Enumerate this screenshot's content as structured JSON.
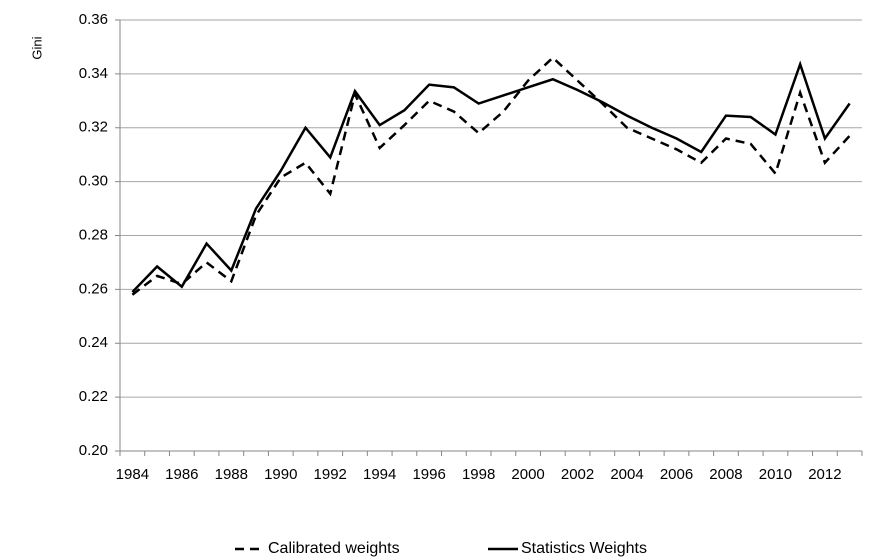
{
  "chart_data": {
    "type": "line",
    "y_label": "Gini",
    "categories": [
      "1984",
      null,
      "1986",
      null,
      "1988",
      null,
      "1990",
      null,
      "1992",
      null,
      "1994",
      null,
      "1996",
      null,
      "1998",
      null,
      "2000",
      null,
      "2002",
      null,
      "2004",
      null,
      "2006",
      null,
      "2008",
      null,
      "2010",
      null,
      "2012",
      null
    ],
    "series": [
      {
        "name": "Calibrated weights",
        "color": "#000000",
        "style": "dashed",
        "values": [
          0.258,
          0.265,
          0.262,
          0.27,
          0.263,
          0.2875,
          0.3015,
          0.307,
          0.2955,
          0.3325,
          0.3125,
          0.321,
          0.33,
          0.326,
          0.318,
          0.326,
          0.3375,
          0.346,
          0.3375,
          0.329,
          0.32,
          0.316,
          0.312,
          0.307,
          0.316,
          0.314,
          0.303,
          0.333,
          0.307,
          0.317
        ]
      },
      {
        "name": "Statistics Weights",
        "color": "#000000",
        "style": "solid",
        "values": [
          0.259,
          0.2685,
          0.261,
          0.277,
          0.267,
          0.29,
          0.304,
          0.32,
          0.309,
          0.3336,
          0.321,
          0.3265,
          0.336,
          0.335,
          0.329,
          0.332,
          0.335,
          0.338,
          0.334,
          0.3295,
          0.3245,
          0.32,
          0.316,
          0.311,
          0.3245,
          0.324,
          0.3175,
          0.3436,
          0.316,
          0.329
        ]
      }
    ],
    "ylim": [
      0.2,
      0.36
    ],
    "yticks": [
      {
        "value": 0.2,
        "label": "0.20"
      },
      {
        "value": 0.22,
        "label": "0.22"
      },
      {
        "value": 0.24,
        "label": "0.24"
      },
      {
        "value": 0.26,
        "label": "0.26"
      },
      {
        "value": 0.28,
        "label": "0.28"
      },
      {
        "value": 0.3,
        "label": "0.30"
      },
      {
        "value": 0.32,
        "label": "0.32"
      },
      {
        "value": 0.34,
        "label": "0.34"
      },
      {
        "value": 0.36,
        "label": "0.36"
      }
    ],
    "grid": true,
    "legend": "bottom"
  }
}
